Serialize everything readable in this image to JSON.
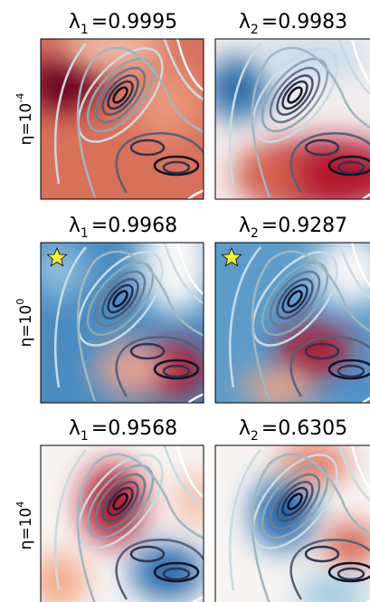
{
  "panels": [
    {
      "symbol": "λ",
      "sub": "1",
      "value": "=0.9995"
    },
    {
      "symbol": "λ",
      "sub": "2",
      "value": "=0.9983"
    },
    {
      "symbol": "λ",
      "sub": "1",
      "value": "=0.9968"
    },
    {
      "symbol": "λ",
      "sub": "2",
      "value": "=0.9287"
    },
    {
      "symbol": "λ",
      "sub": "1",
      "value": "=0.9568"
    },
    {
      "symbol": "λ",
      "sub": "2",
      "value": "=0.6305"
    }
  ],
  "rows": [
    {
      "base": "η=10",
      "exponent": "-4"
    },
    {
      "base": "η=10",
      "exponent": "0"
    },
    {
      "base": "η=10",
      "exponent": "4"
    }
  ]
}
